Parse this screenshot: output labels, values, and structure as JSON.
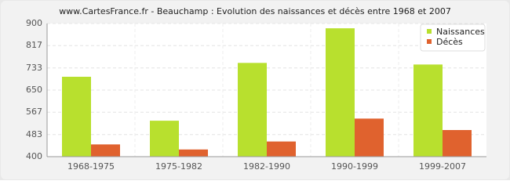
{
  "chart_data": {
    "type": "bar",
    "title": "www.CartesFrance.fr - Beauchamp : Evolution des naissances et décès entre 1968 et 2007",
    "categories": [
      "1968-1975",
      "1975-1982",
      "1982-1990",
      "1990-1999",
      "1999-2007"
    ],
    "series": [
      {
        "name": "Naissances",
        "color": "#b8e02e",
        "values": [
          700,
          535,
          752,
          882,
          746
        ]
      },
      {
        "name": "Décès",
        "color": "#e0622e",
        "values": [
          446,
          427,
          457,
          543,
          500
        ]
      }
    ],
    "ylim": [
      400,
      900
    ],
    "yticks": [
      400,
      483,
      567,
      650,
      733,
      817,
      900
    ],
    "grid": true,
    "legend": "top-right"
  }
}
